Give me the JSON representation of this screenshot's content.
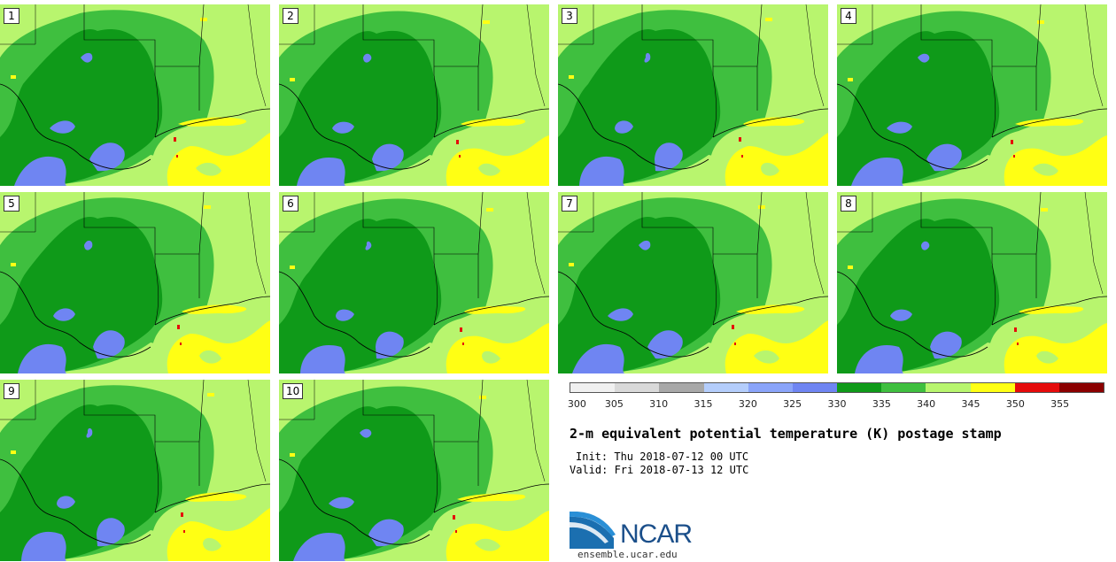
{
  "panels": [
    {
      "label": "1"
    },
    {
      "label": "2"
    },
    {
      "label": "3"
    },
    {
      "label": "4"
    },
    {
      "label": "5"
    },
    {
      "label": "6"
    },
    {
      "label": "7"
    },
    {
      "label": "8"
    },
    {
      "label": "9"
    },
    {
      "label": "10"
    }
  ],
  "colorbar": {
    "colors": [
      "#f0f0f0",
      "#d9d9d9",
      "#a8a8a8",
      "#b4cdfb",
      "#8aa4f9",
      "#6f85f2",
      "#0f9a19",
      "#3fbf3f",
      "#b8f56e",
      "#ffff14",
      "#e50b0b",
      "#8b0000"
    ],
    "ticks": [
      "300",
      "305",
      "310",
      "315",
      "320",
      "325",
      "330",
      "335",
      "340",
      "345",
      "350",
      "355"
    ]
  },
  "title": "2-m equivalent potential temperature (K) postage stamp",
  "init": "Init: Thu 2018-07-12 00 UTC",
  "valid": "Valid: Fri 2018-07-13 12 UTC",
  "logo": {
    "text": "NCAR",
    "url": "ensemble.ucar.edu"
  },
  "colors": {
    "land_light": "#b8f56e",
    "mid_green": "#3fbf3f",
    "dark_green": "#0f9a19",
    "blue": "#6f85f2",
    "yellow": "#ffff14",
    "red": "#e50b0b",
    "logo_blue": "#1b4f8a"
  }
}
